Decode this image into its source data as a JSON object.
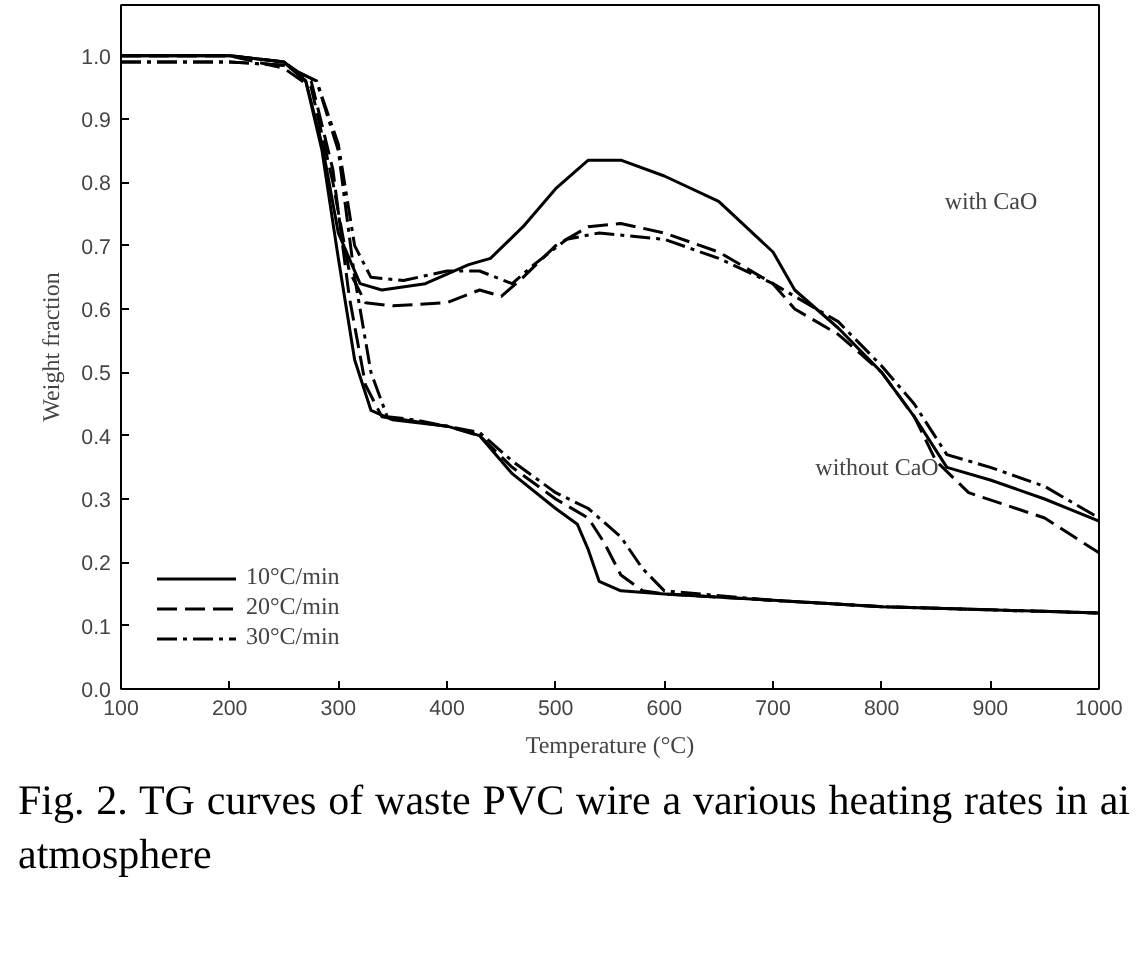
{
  "chart_data": {
    "type": "line",
    "xlabel": "Temperature (°C)",
    "ylabel": "Weight fraction",
    "xlim": [
      100,
      1000
    ],
    "xticks": [
      100,
      200,
      300,
      400,
      500,
      600,
      700,
      800,
      900,
      1000
    ],
    "ylim": [
      0,
      1.08
    ],
    "yticks": [
      {
        "value": 0,
        "label": "0.0"
      },
      0.1,
      0.2,
      0.3,
      0.4,
      0.5,
      0.6,
      0.7,
      0.8,
      0.9,
      {
        "value": 1,
        "label": "1.0"
      }
    ],
    "grid": false,
    "legend": "bottom left",
    "marker": "none",
    "series": [
      {
        "name": "10°C/min",
        "color": "#000000",
        "line_style": "solid",
        "x": [
          100,
          200,
          250,
          270,
          285,
          300,
          315,
          330,
          350,
          400,
          430,
          460,
          500,
          520,
          530,
          540,
          560,
          600,
          700,
          800,
          900,
          1000
        ],
        "values": [
          1.0,
          1.0,
          0.99,
          0.96,
          0.85,
          0.68,
          0.52,
          0.44,
          0.425,
          0.415,
          0.4,
          0.34,
          0.285,
          0.26,
          0.22,
          0.17,
          0.155,
          0.15,
          0.14,
          0.13,
          0.125,
          0.12
        ]
      },
      {
        "name": "20°C/min",
        "color": "#000000",
        "line_style": "dashed",
        "x": [
          100,
          200,
          250,
          275,
          295,
          310,
          325,
          340,
          360,
          400,
          430,
          460,
          500,
          530,
          545,
          560,
          580,
          600,
          700,
          800,
          900,
          1000
        ],
        "values": [
          1.0,
          1.0,
          0.99,
          0.96,
          0.82,
          0.62,
          0.48,
          0.43,
          0.425,
          0.415,
          0.4,
          0.35,
          0.3,
          0.27,
          0.23,
          0.18,
          0.155,
          0.15,
          0.14,
          0.13,
          0.125,
          0.12
        ]
      },
      {
        "name": "30°C/min",
        "color": "#000000",
        "line_style": "dashdot",
        "x": [
          100,
          200,
          250,
          280,
          300,
          315,
          330,
          345,
          370,
          400,
          430,
          460,
          500,
          530,
          560,
          580,
          600,
          700,
          800,
          900,
          1000
        ],
        "values": [
          0.99,
          0.99,
          0.985,
          0.96,
          0.85,
          0.65,
          0.5,
          0.43,
          0.425,
          0.415,
          0.405,
          0.36,
          0.31,
          0.285,
          0.24,
          0.19,
          0.155,
          0.14,
          0.13,
          0.125,
          0.12
        ]
      },
      {
        "color": "#000000",
        "line_style": "solid",
        "x": [
          100,
          200,
          250,
          270,
          285,
          300,
          320,
          340,
          380,
          420,
          440,
          470,
          500,
          530,
          560,
          600,
          650,
          700,
          720,
          760,
          800,
          830,
          860,
          900,
          950,
          1000
        ],
        "values": [
          1.0,
          1.0,
          0.99,
          0.96,
          0.86,
          0.72,
          0.64,
          0.63,
          0.64,
          0.67,
          0.68,
          0.73,
          0.79,
          0.835,
          0.835,
          0.81,
          0.77,
          0.69,
          0.63,
          0.57,
          0.5,
          0.43,
          0.35,
          0.33,
          0.3,
          0.265
        ]
      },
      {
        "color": "#000000",
        "line_style": "dashed",
        "x": [
          100,
          200,
          250,
          275,
          295,
          310,
          325,
          350,
          400,
          430,
          450,
          470,
          500,
          530,
          560,
          600,
          650,
          700,
          720,
          760,
          800,
          830,
          850,
          880,
          950,
          1000
        ],
        "values": [
          1.0,
          1.0,
          0.98,
          0.95,
          0.8,
          0.66,
          0.61,
          0.605,
          0.61,
          0.63,
          0.62,
          0.65,
          0.7,
          0.73,
          0.735,
          0.72,
          0.69,
          0.64,
          0.6,
          0.56,
          0.5,
          0.43,
          0.36,
          0.31,
          0.27,
          0.215
        ]
      },
      {
        "color": "#000000",
        "line_style": "dashdot",
        "x": [
          100,
          200,
          250,
          280,
          300,
          315,
          330,
          360,
          400,
          430,
          460,
          480,
          510,
          540,
          600,
          650,
          700,
          720,
          760,
          800,
          830,
          860,
          900,
          950,
          1000
        ],
        "values": [
          0.99,
          0.99,
          0.985,
          0.96,
          0.86,
          0.7,
          0.65,
          0.645,
          0.66,
          0.66,
          0.64,
          0.67,
          0.71,
          0.72,
          0.71,
          0.68,
          0.64,
          0.62,
          0.58,
          0.51,
          0.45,
          0.37,
          0.35,
          0.32,
          0.27
        ]
      }
    ],
    "annotations": [
      "with CaO",
      "without CaO",
      "Fig. 2. TG curves of waste PVC wire a various heating rates in ai atmosphere"
    ]
  }
}
